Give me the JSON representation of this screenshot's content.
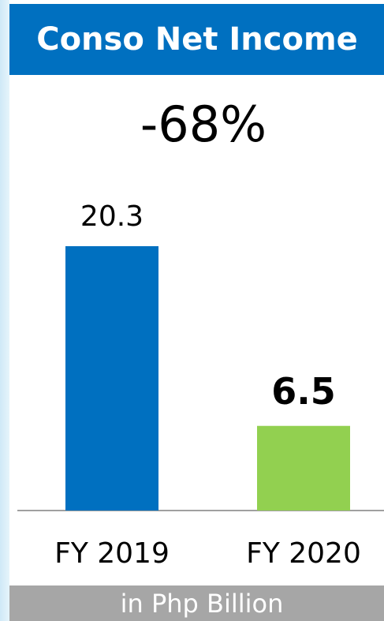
{
  "chart_data": {
    "type": "bar",
    "title": "Conso Net Income",
    "annotation": "-68%",
    "footnote": "in Php Billion",
    "categories": [
      "FY 2019",
      "FY 2020"
    ],
    "values": [
      20.3,
      6.5
    ],
    "colors": [
      "#0070c0",
      "#92d050"
    ]
  }
}
